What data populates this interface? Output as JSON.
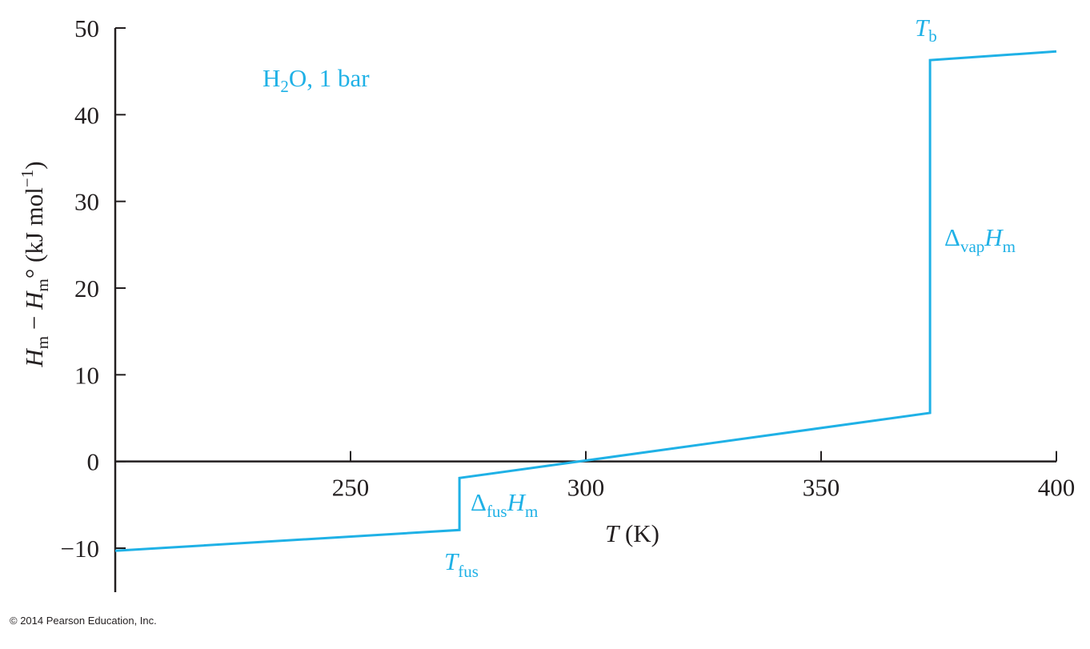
{
  "chart_data": {
    "type": "line",
    "title": "",
    "xlabel_symbol": "T",
    "xlabel_unit": " (K)",
    "ylabel": {
      "H1": "H",
      "sub1": "m",
      "minus": " − ",
      "H2": "H",
      "sub2": "m",
      "degree": "°",
      "unit": " (kJ mol",
      "sup": "−1",
      "close": ")"
    },
    "xlim": [
      200,
      400
    ],
    "ylim": [
      -15,
      50
    ],
    "x_ticks": [
      250,
      300,
      350,
      400
    ],
    "y_ticks": [
      50,
      40,
      30,
      20,
      10,
      0,
      -10
    ],
    "x_tick_labels": [
      "250",
      "300",
      "350",
      "400"
    ],
    "y_tick_labels": [
      "50",
      "40",
      "30",
      "20",
      "10",
      "0",
      "−10"
    ],
    "grid": false,
    "series": [
      {
        "color": "#1fb1e6",
        "x": [
          200,
          273.15,
          273.15,
          373.15,
          373.15,
          400
        ],
        "y": [
          -10.3,
          -7.9,
          -1.9,
          5.6,
          46.3,
          47.3
        ]
      }
    ],
    "annotations": {
      "system": {
        "main": "H",
        "sub": "2",
        "rest": "O, 1 bar"
      },
      "tb": {
        "sym": "T",
        "sub": "b"
      },
      "tfus": {
        "sym": "T",
        "sub": "fus"
      },
      "dvap": {
        "delta": "Δ",
        "sub": "vap",
        "sym": "H",
        "sub2": "m"
      },
      "dfus": {
        "delta": "Δ",
        "sub": "fus",
        "sym": "H",
        "sub2": "m"
      }
    }
  },
  "footer": {
    "copyright": "© 2014 Pearson Education, Inc."
  }
}
